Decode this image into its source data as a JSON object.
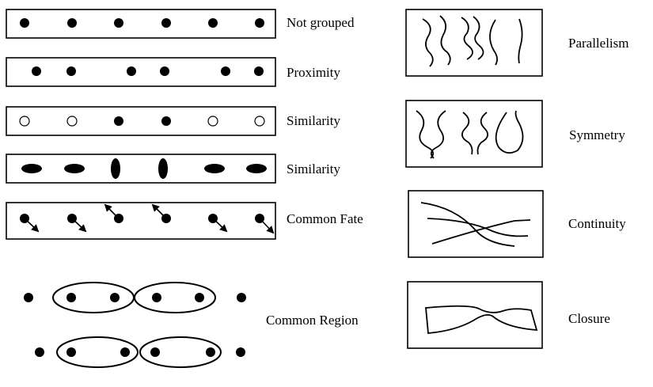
{
  "gestalt": {
    "not_grouped": "Not grouped",
    "proximity": "Proximity",
    "similarity_color": "Similarity",
    "similarity_shape": "Similarity",
    "common_fate": "Common Fate",
    "common_region": "Common Region",
    "parallelism": "Parallelism",
    "symmetry": "Symmetry",
    "continuity": "Continuity",
    "closure": "Closure"
  },
  "colors": {
    "ink": "#000000",
    "paper": "#ffffff"
  }
}
